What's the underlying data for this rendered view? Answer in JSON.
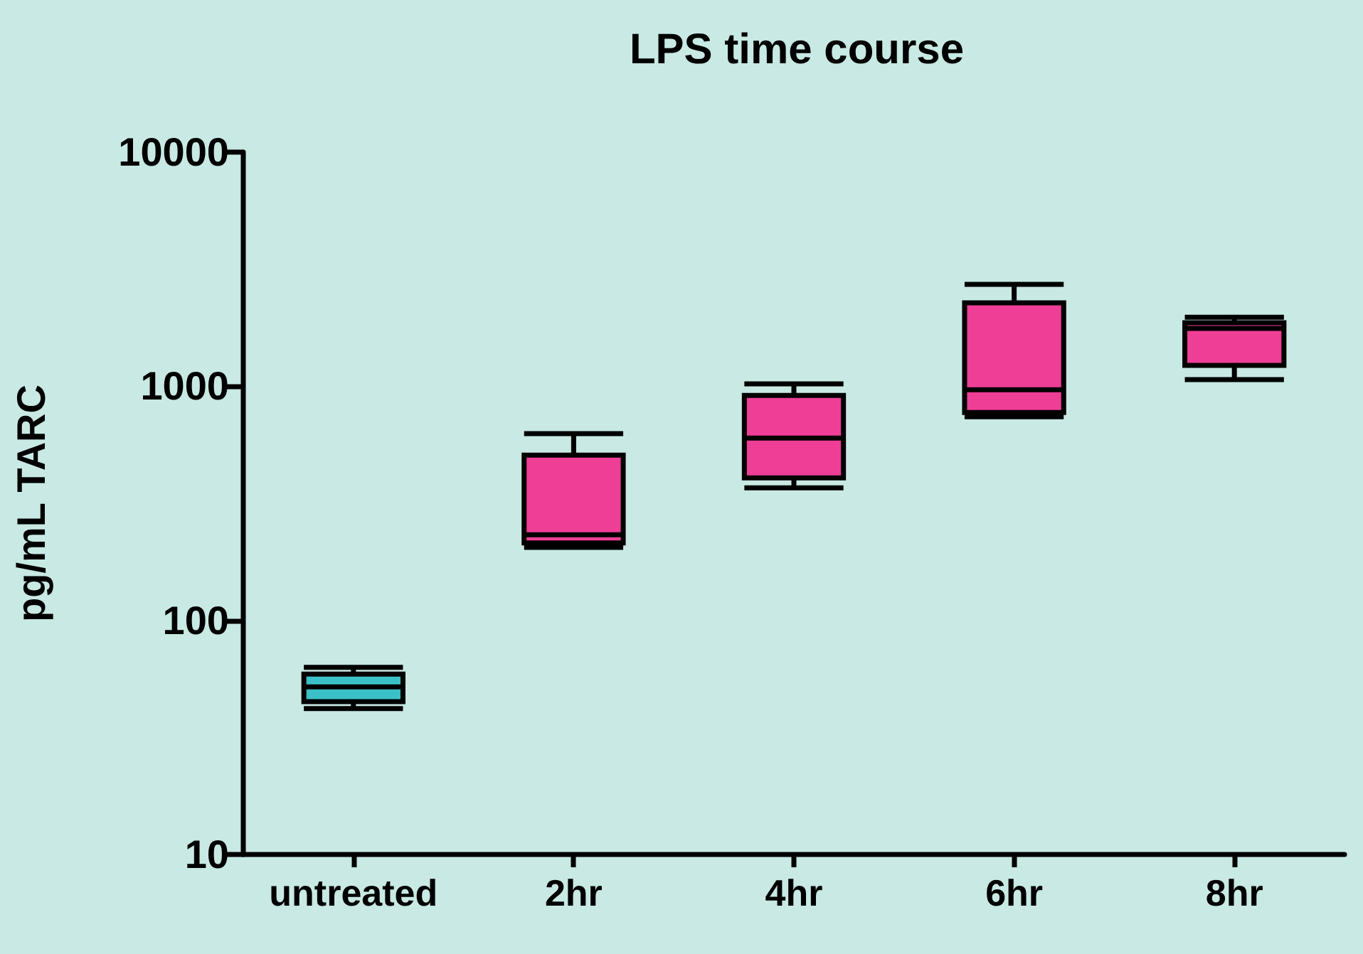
{
  "chart_data": {
    "type": "box",
    "title": "LPS time course",
    "ylabel": "pg/mL TARC",
    "categories": [
      "untreated",
      "2hr",
      "4hr",
      "6hr",
      "8hr"
    ],
    "boxes": [
      {
        "low": 42,
        "q1": 45,
        "median": 52,
        "q3": 59,
        "high": 63
      },
      {
        "low": 205,
        "q1": 214,
        "median": 232,
        "q3": 508,
        "high": 627
      },
      {
        "low": 368,
        "q1": 406,
        "median": 601,
        "q3": 914,
        "high": 1023
      },
      {
        "low": 741,
        "q1": 773,
        "median": 966,
        "q3": 2270,
        "high": 2723
      },
      {
        "low": 1067,
        "q1": 1228,
        "median": 1766,
        "q3": 1866,
        "high": 1973
      }
    ],
    "colors": [
      "#3cc0c8",
      "#ee3e96",
      "#ee3e96",
      "#ee3e96",
      "#ee3e96"
    ],
    "log": "y",
    "ylim": [
      10,
      10000
    ],
    "yticks": [
      10,
      100,
      1000,
      10000
    ],
    "grid": false
  }
}
